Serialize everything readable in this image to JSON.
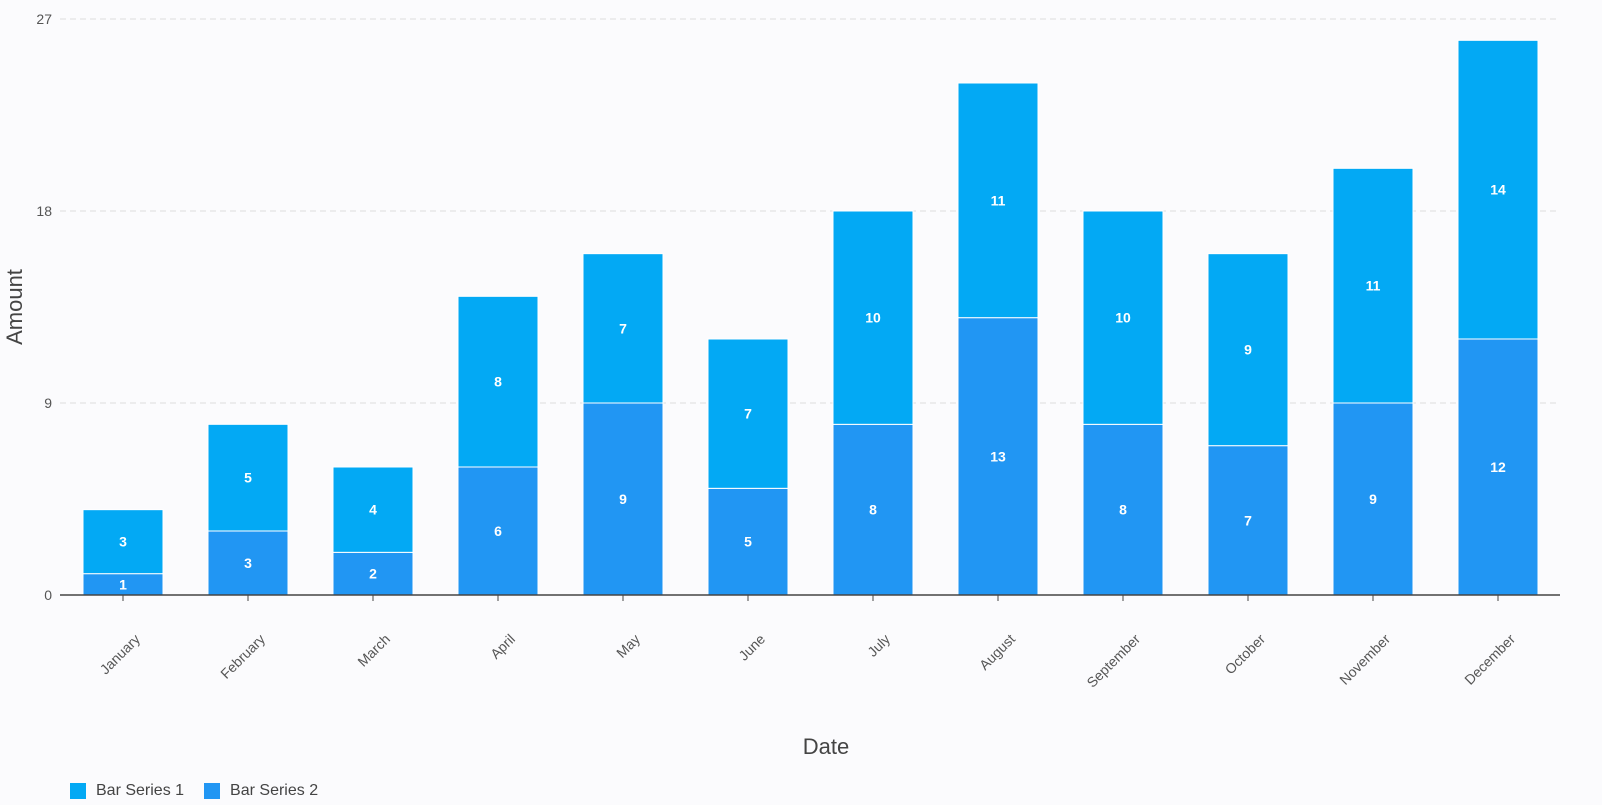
{
  "chart_data": {
    "type": "bar",
    "stacked": true,
    "categories": [
      "January",
      "February",
      "March",
      "April",
      "May",
      "June",
      "July",
      "August",
      "September",
      "October",
      "November",
      "December"
    ],
    "series": [
      {
        "name": "Bar Series 2",
        "color": "#2196f3",
        "values": [
          1,
          3,
          2,
          6,
          9,
          5,
          8,
          13,
          8,
          7,
          9,
          12
        ]
      },
      {
        "name": "Bar Series 1",
        "color": "#03a9f4",
        "values": [
          3,
          5,
          4,
          8,
          7,
          7,
          10,
          11,
          10,
          9,
          11,
          14
        ]
      }
    ],
    "legend_order": [
      "Bar Series 1",
      "Bar Series 2"
    ],
    "xlabel": "Date",
    "ylabel": "Amount",
    "ylim": [
      0,
      27
    ],
    "yticks": [
      0,
      9,
      18,
      27
    ],
    "grid": true,
    "legend_position": "bottom-left"
  }
}
